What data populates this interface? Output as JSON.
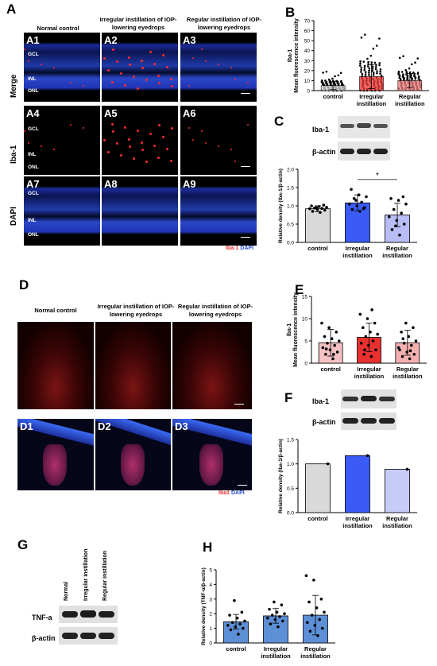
{
  "panel_labels": {
    "A": "A",
    "B": "B",
    "C": "C",
    "D": "D",
    "E": "E",
    "F": "F",
    "G": "G",
    "H": "H"
  },
  "panelA": {
    "col_headers": [
      "Normal control",
      "Irregular instillation of IOP-lowering eyedrops",
      "Regular instillation of IOP-lowering eyedrops"
    ],
    "row_labels": [
      "Merge",
      "Iba-1",
      "DAPI"
    ],
    "sub_labels": [
      "A1",
      "A2",
      "A3",
      "A4",
      "A5",
      "A6",
      "A7",
      "A8",
      "A9"
    ],
    "layers": [
      "GCL",
      "INL",
      "ONL"
    ],
    "legend_iba": "Iba-1",
    "legend_dapi": "DAPI"
  },
  "panelD": {
    "col_headers": [
      "Normal control",
      "Irregular instillation of IOP-lowering eyedrops",
      "Regular instillation of IOP-lowering eyedrops"
    ],
    "sub_labels": [
      "D1",
      "D2",
      "D3"
    ],
    "legend_iba": "Iba1",
    "legend_dapi": "DAPI"
  },
  "blots": {
    "C": [
      "Iba-1",
      "β-actin"
    ],
    "F": [
      "Iba-1",
      "β-actin"
    ],
    "G": {
      "lanes": [
        "Normal",
        "Irregular instillation",
        "Regular instillation"
      ],
      "rows": [
        "TNF-a",
        "β-actin"
      ]
    }
  },
  "chart_data": [
    {
      "id": "B",
      "type": "scatter",
      "ylabel_line1": "Iba-1",
      "ylabel_line2": "Mean fluorescence intensity",
      "categories": [
        "control",
        "Irregular instillation",
        "Regular instillation"
      ],
      "ylim": [
        0,
        70
      ],
      "yticks": [
        0,
        10,
        20,
        30,
        40,
        50,
        60,
        70
      ],
      "means": [
        5,
        14,
        10
      ],
      "sd": [
        4,
        12,
        7
      ],
      "bar_colors": [
        "#d9d9d9",
        "#e8312f",
        "#f08080"
      ]
    },
    {
      "id": "C",
      "type": "bar",
      "ylabel": "Relative density (Iba-1/β-actin)",
      "categories": [
        "control",
        "Irregular instillation",
        "Regular instillation"
      ],
      "values": [
        0.92,
        1.08,
        0.75
      ],
      "sd": [
        0.08,
        0.22,
        0.32
      ],
      "ylim": [
        0,
        2.0
      ],
      "yticks": [
        0.0,
        0.5,
        1.0,
        1.5,
        2.0
      ],
      "bar_colors": [
        "#d9d9d9",
        "#3a5bf5",
        "#b9bdf6"
      ],
      "points": [
        [
          0.82,
          0.85,
          0.88,
          0.9,
          0.92,
          0.93,
          0.94,
          0.96,
          0.98,
          1.0,
          1.02,
          0.95
        ],
        [
          0.85,
          0.9,
          0.95,
          1.0,
          1.05,
          1.1,
          1.2,
          1.25,
          1.3,
          1.45,
          0.92,
          1.15
        ],
        [
          0.2,
          0.35,
          0.5,
          0.6,
          0.7,
          0.8,
          0.9,
          1.05,
          1.15,
          1.2,
          1.25,
          0.45
        ]
      ],
      "significance": "*"
    },
    {
      "id": "E",
      "type": "bar",
      "ylabel_line1": "Iba-1",
      "ylabel_line2": "Mean fluorescence intensity",
      "categories": [
        "control",
        "Irregular instillation",
        "Regular instillation"
      ],
      "values": [
        4.6,
        5.8,
        4.6
      ],
      "sd": [
        3.0,
        3.2,
        2.8
      ],
      "ylim": [
        0,
        15
      ],
      "yticks": [
        0,
        5,
        10,
        15
      ],
      "bar_colors": [
        "#f4c2c2",
        "#e8312f",
        "#f4b0b0"
      ],
      "points": [
        [
          1,
          2,
          2.5,
          3,
          3.5,
          4,
          4.5,
          5,
          5.5,
          6,
          7,
          8,
          9,
          2,
          3.2
        ],
        [
          1.5,
          2,
          3,
          4,
          4.5,
          5,
          6,
          6.5,
          7,
          8,
          9,
          10,
          11,
          12,
          3
        ],
        [
          1,
          1.5,
          2,
          2.5,
          3,
          4,
          4.5,
          5,
          6,
          7,
          8,
          9,
          3.5,
          2.8,
          5.5
        ]
      ]
    },
    {
      "id": "F",
      "type": "bar",
      "ylabel": "Relative density (Iba-1/β-actin)",
      "categories": [
        "control",
        "Irregular instillation",
        "Regular instillation"
      ],
      "values": [
        1.0,
        1.17,
        0.89
      ],
      "ylim": [
        0,
        1.5
      ],
      "yticks": [
        0.0,
        0.5,
        1.0,
        1.5
      ],
      "bar_colors": [
        "#d9d9d9",
        "#3a5bf5",
        "#c7cbf8"
      ]
    },
    {
      "id": "H",
      "type": "bar",
      "ylabel": "Relative density (TNF-α/β-actin)",
      "categories": [
        "control",
        "Irregular instillation",
        "Regular instillation"
      ],
      "values": [
        1.45,
        1.85,
        1.9
      ],
      "sd": [
        0.5,
        0.5,
        1.35
      ],
      "ylim": [
        0,
        5
      ],
      "yticks": [
        0,
        1,
        2,
        3,
        4,
        5
      ],
      "bar_colors": [
        "#5d8fd6",
        "#5d8fd6",
        "#5d8fd6"
      ],
      "points": [
        [
          0.6,
          0.9,
          1.0,
          1.1,
          1.2,
          1.3,
          1.4,
          1.5,
          1.7,
          1.9,
          2.1,
          2.9
        ],
        [
          1.1,
          1.3,
          1.5,
          1.6,
          1.7,
          1.8,
          1.9,
          2.0,
          2.1,
          2.3,
          2.6,
          2.8
        ],
        [
          0.5,
          0.8,
          1.0,
          1.2,
          1.4,
          1.6,
          1.9,
          2.1,
          2.4,
          2.8,
          3.0,
          4.3,
          4.6
        ]
      ]
    }
  ]
}
